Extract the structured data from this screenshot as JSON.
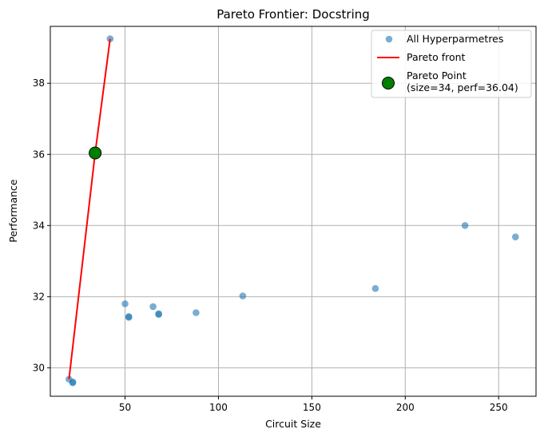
{
  "chart_data": {
    "type": "scatter",
    "title": "Pareto Frontier: Docstring",
    "xlabel": "Circuit Size",
    "ylabel": "Performance",
    "xlim": [
      10,
      270
    ],
    "ylim": [
      29.2,
      39.6
    ],
    "xticks": [
      50,
      100,
      150,
      200,
      250
    ],
    "yticks": [
      30,
      32,
      34,
      36,
      38
    ],
    "grid": true,
    "legend_position": "top-right",
    "series": [
      {
        "name": "All Hyperparmetres",
        "kind": "scatter",
        "color": "#1f77b4",
        "x": [
          20,
          22,
          22,
          42,
          50,
          52,
          52,
          65,
          68,
          68,
          88,
          113,
          184,
          232,
          259
        ],
        "y": [
          29.68,
          29.58,
          29.6,
          39.25,
          31.8,
          31.42,
          31.44,
          31.72,
          31.5,
          31.52,
          31.55,
          32.02,
          32.23,
          34.0,
          33.68
        ]
      },
      {
        "name": "Pareto front",
        "kind": "line",
        "color": "#ff0000",
        "x": [
          20,
          34,
          42
        ],
        "y": [
          29.68,
          36.04,
          39.25
        ]
      },
      {
        "name": "Pareto Point\n(size=34, perf=36.04)",
        "kind": "marker",
        "color": "#008000",
        "x": [
          34
        ],
        "y": [
          36.04
        ]
      }
    ]
  }
}
